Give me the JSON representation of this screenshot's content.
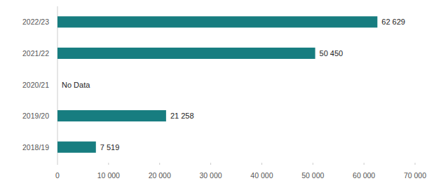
{
  "chart_data": {
    "type": "bar",
    "orientation": "horizontal",
    "categories": [
      "2022/23",
      "2021/22",
      "2020/21",
      "2019/20",
      "2018/19"
    ],
    "values": [
      62629,
      50450,
      null,
      21258,
      7519
    ],
    "value_labels": [
      "62 629",
      "50 450",
      null,
      "21 258",
      "7 519"
    ],
    "data_labels": true,
    "color": "#177d80",
    "xlim": [
      0,
      70000
    ],
    "xticks": [
      0,
      {
        "value": 10000,
        "label": "10 000"
      },
      {
        "value": 20000,
        "label": "20 000"
      },
      {
        "value": 30000,
        "label": "30 000"
      },
      {
        "value": 40000,
        "label": "40 000"
      },
      {
        "value": 50000,
        "label": "50 000"
      },
      {
        "value": 60000,
        "label": "60 000"
      },
      {
        "value": 70000,
        "label": "70 000"
      }
    ],
    "grid": false,
    "annotations": [
      {
        "text": "No Data",
        "category": "2020/21"
      }
    ]
  }
}
